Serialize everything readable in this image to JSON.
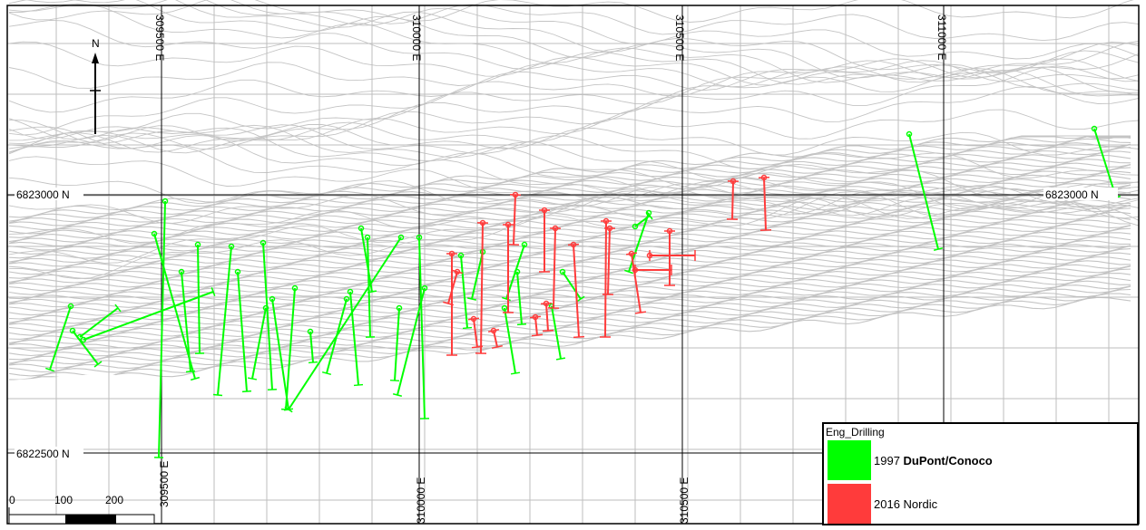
{
  "map": {
    "grid_x_labels_top": [
      "309500 E",
      "310000 E",
      "310500 E",
      "311000 E"
    ],
    "grid_x_labels_bottom": [
      "309500 E",
      "310000 E",
      "310500 E"
    ],
    "grid_y_labels_left": [
      "6823000 N",
      "6822500 N"
    ],
    "grid_y_labels_right": [
      "6823000 N"
    ],
    "north_label": "N",
    "scale_labels": [
      "0",
      "100",
      "200"
    ]
  },
  "legend": {
    "title": "Eng_Drilling",
    "items": [
      {
        "year": "1997",
        "name": "DuPont/Conoco",
        "color": "#00ff00"
      },
      {
        "year": "2016",
        "name": "Nordic",
        "color": "#ff3b3b"
      }
    ]
  },
  "colors": {
    "contour": "#c4c4c4",
    "grid": "#000000",
    "green": "#00ff00",
    "red": "#ff3b3b"
  }
}
